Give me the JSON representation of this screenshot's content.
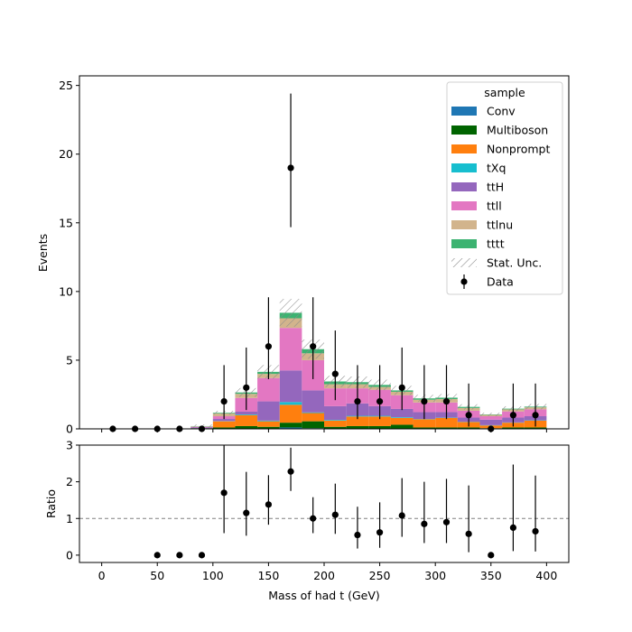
{
  "chart_data": [
    {
      "panel": "main",
      "type": "bar",
      "stacked": true,
      "ylabel": "Events",
      "ylim": [
        0,
        25.7
      ],
      "y_ticks": [
        0,
        5,
        10,
        15,
        20,
        25
      ],
      "bin_edges": [
        0,
        20,
        40,
        60,
        80,
        100,
        120,
        140,
        160,
        180,
        200,
        220,
        240,
        260,
        280,
        300,
        320,
        340,
        360,
        380,
        400
      ],
      "legend": {
        "title": "sample",
        "position": "upper right"
      },
      "series": [
        {
          "name": "Conv",
          "color": "#1f77b4",
          "values": [
            0,
            0,
            0,
            0,
            0,
            0,
            0,
            0,
            0.1,
            0.05,
            0,
            0,
            0,
            0,
            0,
            0,
            0,
            0,
            0,
            0
          ]
        },
        {
          "name": "Multiboson",
          "color": "#006400",
          "values": [
            0,
            0,
            0,
            0,
            0.05,
            0.1,
            0.2,
            0.15,
            0.35,
            0.5,
            0.15,
            0.2,
            0.2,
            0.3,
            0.1,
            0.1,
            0.1,
            0.05,
            0.1,
            0.1
          ]
        },
        {
          "name": "Nonprompt",
          "color": "#ff7f0e",
          "values": [
            0,
            0,
            0,
            0,
            0,
            0.45,
            0.8,
            0.4,
            1.3,
            0.6,
            0.45,
            0.7,
            0.7,
            0.5,
            0.6,
            0.7,
            0.4,
            0.2,
            0.35,
            0.5
          ]
        },
        {
          "name": "tXq",
          "color": "#17becf",
          "values": [
            0,
            0,
            0,
            0,
            0,
            0.02,
            0.05,
            0.05,
            0.2,
            0.05,
            0.05,
            0.05,
            0.05,
            0.05,
            0.02,
            0.02,
            0.02,
            0.02,
            0.02,
            0.02
          ]
        },
        {
          "name": "ttH",
          "color": "#9467bd",
          "values": [
            0,
            0,
            0,
            0,
            0.05,
            0.15,
            0.2,
            1.4,
            2.3,
            1.6,
            1.0,
            0.9,
            0.7,
            0.6,
            0.5,
            0.4,
            0.3,
            0.4,
            0.35,
            0.3
          ]
        },
        {
          "name": "ttll",
          "color": "#e377c2",
          "values": [
            0,
            0,
            0,
            0,
            0.05,
            0.2,
            1.0,
            1.7,
            3.1,
            2.2,
            1.3,
            1.1,
            1.2,
            1.0,
            0.7,
            0.7,
            0.5,
            0.25,
            0.45,
            0.5
          ]
        },
        {
          "name": "ttlnu",
          "color": "#d2b48c",
          "values": [
            0,
            0,
            0,
            0,
            0.03,
            0.2,
            0.3,
            0.3,
            0.7,
            0.5,
            0.3,
            0.3,
            0.2,
            0.25,
            0.2,
            0.25,
            0.2,
            0.1,
            0.15,
            0.15
          ]
        },
        {
          "name": "tttt",
          "color": "#3cb371",
          "values": [
            0,
            0,
            0,
            0,
            0.02,
            0.05,
            0.1,
            0.15,
            0.4,
            0.3,
            0.2,
            0.15,
            0.15,
            0.1,
            0.1,
            0.1,
            0.08,
            0.03,
            0.05,
            0.05
          ]
        }
      ],
      "stat_unc": {
        "name": "Stat. Unc.",
        "frac": 0.12
      },
      "data": {
        "name": "Data",
        "x": [
          10,
          30,
          50,
          70,
          90,
          110,
          130,
          150,
          170,
          190,
          210,
          230,
          250,
          270,
          290,
          310,
          330,
          350,
          370,
          390
        ],
        "y": [
          0,
          0,
          0,
          0,
          0,
          2,
          3,
          6,
          19,
          6,
          4,
          2,
          2,
          3,
          2,
          2,
          1,
          0,
          1,
          1
        ],
        "yerr_low": [
          0,
          0,
          0,
          0,
          0,
          1.29,
          1.63,
          2.38,
          4.32,
          2.38,
          1.91,
          1.29,
          1.29,
          1.63,
          1.29,
          1.29,
          0.83,
          0,
          0.83,
          0.83
        ],
        "yerr_high": [
          0,
          0,
          0,
          0,
          0,
          2.64,
          2.92,
          3.58,
          5.41,
          3.58,
          3.16,
          2.64,
          2.64,
          2.92,
          2.64,
          2.64,
          2.3,
          0,
          2.3,
          2.3
        ]
      }
    },
    {
      "panel": "ratio",
      "type": "scatter",
      "ylabel": "Ratio",
      "xlabel": "Mass of had t (GeV)",
      "xlim": [
        -20,
        420
      ],
      "ylim": [
        -0.2,
        3.0
      ],
      "x_ticks": [
        0,
        50,
        100,
        150,
        200,
        250,
        300,
        350,
        400
      ],
      "y_ticks": [
        0,
        1,
        2,
        3
      ],
      "reference_line": 1,
      "x": [
        50,
        70,
        90,
        110,
        130,
        150,
        170,
        190,
        210,
        230,
        250,
        270,
        290,
        310,
        330,
        350,
        370,
        390
      ],
      "y": [
        0,
        0,
        0,
        1.7,
        1.15,
        1.38,
        2.28,
        1.0,
        1.1,
        0.55,
        0.62,
        1.08,
        0.85,
        0.9,
        0.58,
        0,
        0.75,
        0.65
      ],
      "yerr_low": [
        0,
        0,
        0,
        1.1,
        0.62,
        0.55,
        0.53,
        0.4,
        0.52,
        0.37,
        0.42,
        0.58,
        0.52,
        0.57,
        0.5,
        0,
        0.64,
        0.55
      ],
      "yerr_high": [
        0,
        0,
        0,
        1.3,
        1.12,
        0.8,
        0.65,
        0.58,
        0.85,
        0.77,
        0.82,
        1.02,
        1.15,
        1.18,
        1.32,
        0,
        1.72,
        1.52
      ]
    }
  ]
}
